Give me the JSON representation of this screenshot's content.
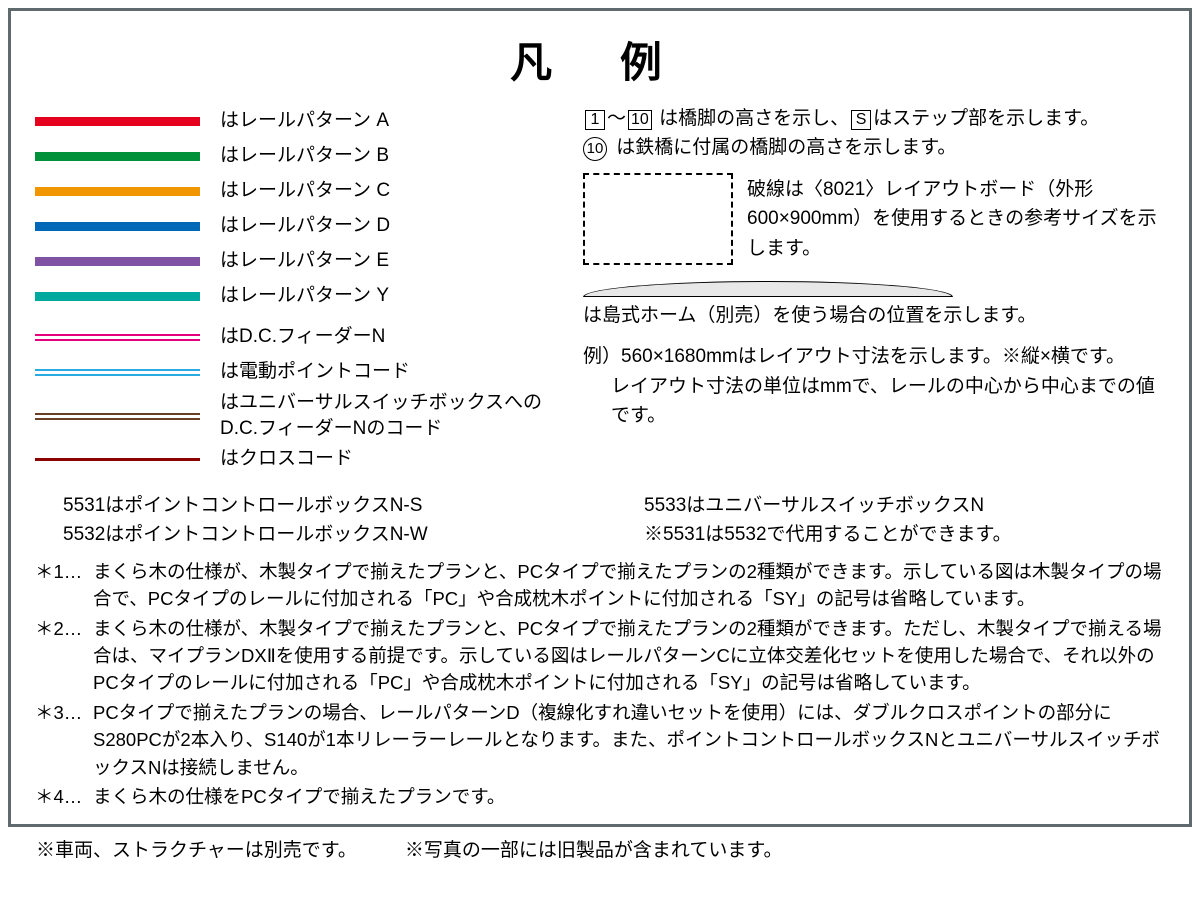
{
  "title": "凡 例",
  "rail_patterns": [
    {
      "color": "#e5001e",
      "label": "はレールパターン  A"
    },
    {
      "color": "#00913a",
      "label": "はレールパターン  B"
    },
    {
      "color": "#f29600",
      "label": "はレールパターン  C"
    },
    {
      "color": "#0068b6",
      "label": "はレールパターン  D"
    },
    {
      "color": "#7f52a3",
      "label": "はレールパターン  E"
    },
    {
      "color": "#00a99d",
      "label": "はレールパターン  Y"
    }
  ],
  "wires": [
    {
      "color": "#e6007e",
      "label": "はD.C.フィーダーN"
    },
    {
      "color": "#29abe2",
      "label": "は電動ポイントコード"
    },
    {
      "color": "#6b3f25",
      "label": "はユニバーサルスイッチボックスへのD.C.フィーダーNのコード",
      "multi": true
    },
    {
      "color": "#8b0000",
      "label": "はクロスコード",
      "single": true
    }
  ],
  "bridge_line": {
    "boxes": [
      "1",
      "10"
    ],
    "tilde": "〜",
    "s_box": "S",
    "text_a": " は橋脚の高さを示し、",
    "text_b": "はステップ部を示します。"
  },
  "circled_line": {
    "num": "10",
    "text": " は鉄橋に付属の橋脚の高さを示します。"
  },
  "dashed_text": "破線は〈8021〉レイアウトボード（外形600×900mm）を使用するときの参考サイズを示します。",
  "platform_text": "は島式ホーム（別売）を使う場合の位置を示します。",
  "example_line": "例）560×1680mmはレイアウト寸法を示します。※縦×横です。",
  "unit_line": "レイアウト寸法の単位はmmで、レールの中心から中心までの値です。",
  "codes_left": [
    "5531はポイントコントロールボックスN-S",
    "5532はポイントコントロールボックスN-W"
  ],
  "codes_right": [
    "5533はユニバーサルスイッチボックスN",
    "※5531は5532で代用することができます。"
  ],
  "notes": [
    {
      "head": "＊1…",
      "body": "まくら木の仕様が、木製タイプで揃えたプランと、PCタイプで揃えたプランの2種類ができます。示している図は木製タイプの場合で、PCタイプのレールに付加される「PC」や合成枕木ポイントに付加される「SY」の記号は省略しています。"
    },
    {
      "head": "＊2…",
      "body": "まくら木の仕様が、木製タイプで揃えたプランと、PCタイプで揃えたプランの2種類ができます。ただし、木製タイプで揃える場合は、マイプランDXⅡを使用する前提です。示している図はレールパターンCに立体交差化セットを使用した場合で、それ以外のPCタイプのレールに付加される「PC」や合成枕木ポイントに付加される「SY」の記号は省略しています。"
    },
    {
      "head": "＊3…",
      "body": "PCタイプで揃えたプランの場合、レールパターンD（複線化すれ違いセットを使用）には、ダブルクロスポイントの部分にS280PCが2本入り、S140が1本リレーラーレールとなります。また、ポイントコントロールボックスNとユニバーサルスイッチボックスNは接続しません。"
    },
    {
      "head": "＊4…",
      "body": "まくら木の仕様をPCタイプで揃えたプランです。"
    }
  ],
  "footer": [
    "※車両、ストラクチャーは別売です。",
    "※写真の一部には旧製品が含まれています。"
  ]
}
